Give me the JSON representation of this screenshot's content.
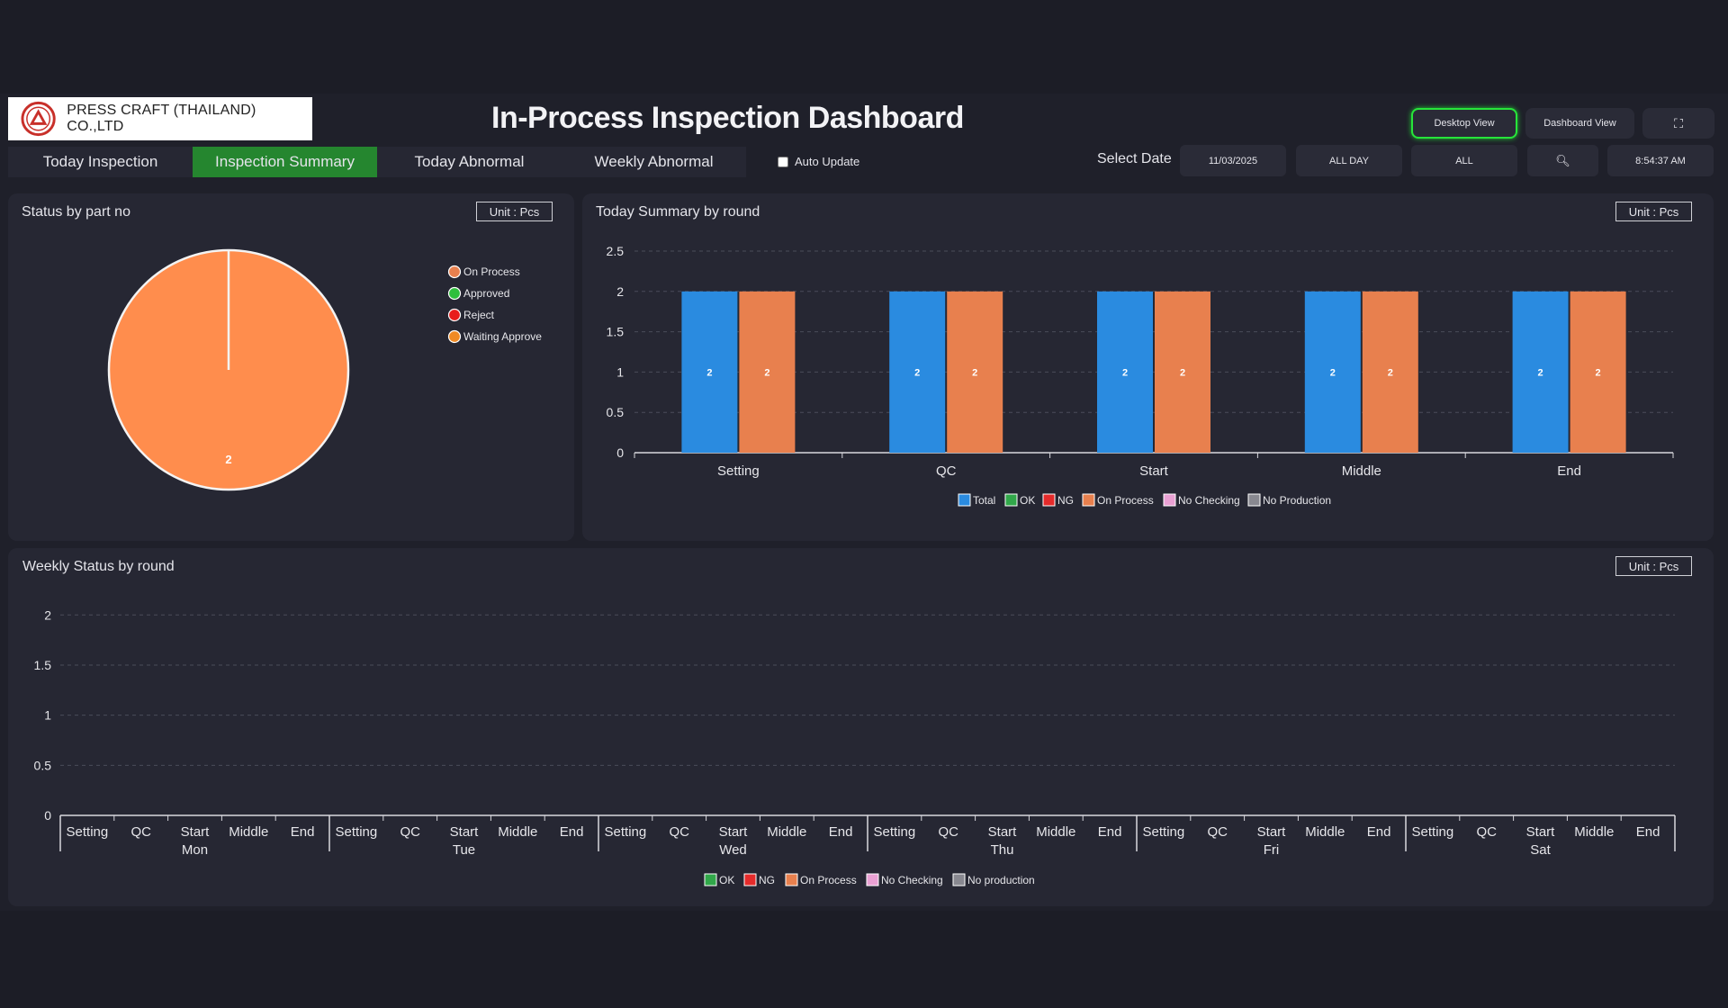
{
  "header": {
    "company": "PRESS CRAFT (THAILAND) CO.,LTD",
    "title": "In-Process Inspection Dashboard",
    "view_buttons": [
      "Desktop View",
      "Dashboard View"
    ],
    "fullscreen_icon": "fullscreen-icon"
  },
  "tabs": [
    "Today Inspection",
    "Inspection Summary",
    "Today Abnormal",
    "Weekly Abnormal"
  ],
  "active_tab": "Inspection Summary",
  "auto_update": {
    "label": "Auto Update",
    "checked": false
  },
  "filters": {
    "select_date_label": "Select Date",
    "date": "11/03/2025",
    "time_range": "ALL DAY",
    "scope": "ALL",
    "search_icon": "search-icon",
    "clock": "8:54:37 AM"
  },
  "panels": {
    "status": {
      "title": "Status by part no",
      "unit": "Unit : Pcs"
    },
    "today": {
      "title": "Today Summary by round",
      "unit": "Unit : Pcs"
    },
    "weekly": {
      "title": "Weekly Status by round",
      "unit": "Unit : Pcs"
    }
  },
  "colors": {
    "total": "#2a8be0",
    "ok": "#31a84a",
    "ng": "#e52b2b",
    "on_process": "#e8804e",
    "no_checking": "#eaa1d4",
    "no_production": "#888890",
    "approved": "#2fbf3c",
    "reject": "#e81c1c",
    "waiting_approve": "#f08a24",
    "pie": "#ff8d4d"
  },
  "chart_data": [
    {
      "type": "pie",
      "legend": [
        "On Process",
        "Approved",
        "Reject",
        "Waiting Approve"
      ],
      "values": [
        2,
        0,
        0,
        0
      ],
      "data_labels": [
        "2"
      ]
    },
    {
      "type": "bar",
      "categories": [
        "Setting",
        "QC",
        "Start",
        "Middle",
        "End"
      ],
      "series": [
        {
          "name": "Total",
          "values": [
            2,
            2,
            2,
            2,
            2
          ]
        },
        {
          "name": "OK",
          "values": [
            0,
            0,
            0,
            0,
            0
          ]
        },
        {
          "name": "NG",
          "values": [
            0,
            0,
            0,
            0,
            0
          ]
        },
        {
          "name": "On Process",
          "values": [
            2,
            2,
            2,
            2,
            2
          ]
        },
        {
          "name": "No Checking",
          "values": [
            0,
            0,
            0,
            0,
            0
          ]
        },
        {
          "name": "No Production",
          "values": [
            0,
            0,
            0,
            0,
            0
          ]
        }
      ],
      "yticks": [
        "0",
        "0.5",
        "1",
        "1.5",
        "2",
        "2.5"
      ],
      "ylim": [
        0,
        2.5
      ],
      "grid": true,
      "legend_position": "bottom"
    },
    {
      "type": "bar",
      "days": [
        "Mon",
        "Tue",
        "Wed",
        "Thu",
        "Fri",
        "Sat"
      ],
      "rounds": [
        "Setting",
        "QC",
        "Start",
        "Middle",
        "End"
      ],
      "series": [
        {
          "name": "OK",
          "values": []
        },
        {
          "name": "NG",
          "values": []
        },
        {
          "name": "On Process",
          "values": []
        },
        {
          "name": "No Checking",
          "values": []
        },
        {
          "name": "No production",
          "values": []
        }
      ],
      "yticks": [
        "0",
        "0.5",
        "1",
        "1.5",
        "2"
      ],
      "ylim": [
        0,
        2.2
      ],
      "grid": true,
      "legend_position": "bottom"
    }
  ]
}
